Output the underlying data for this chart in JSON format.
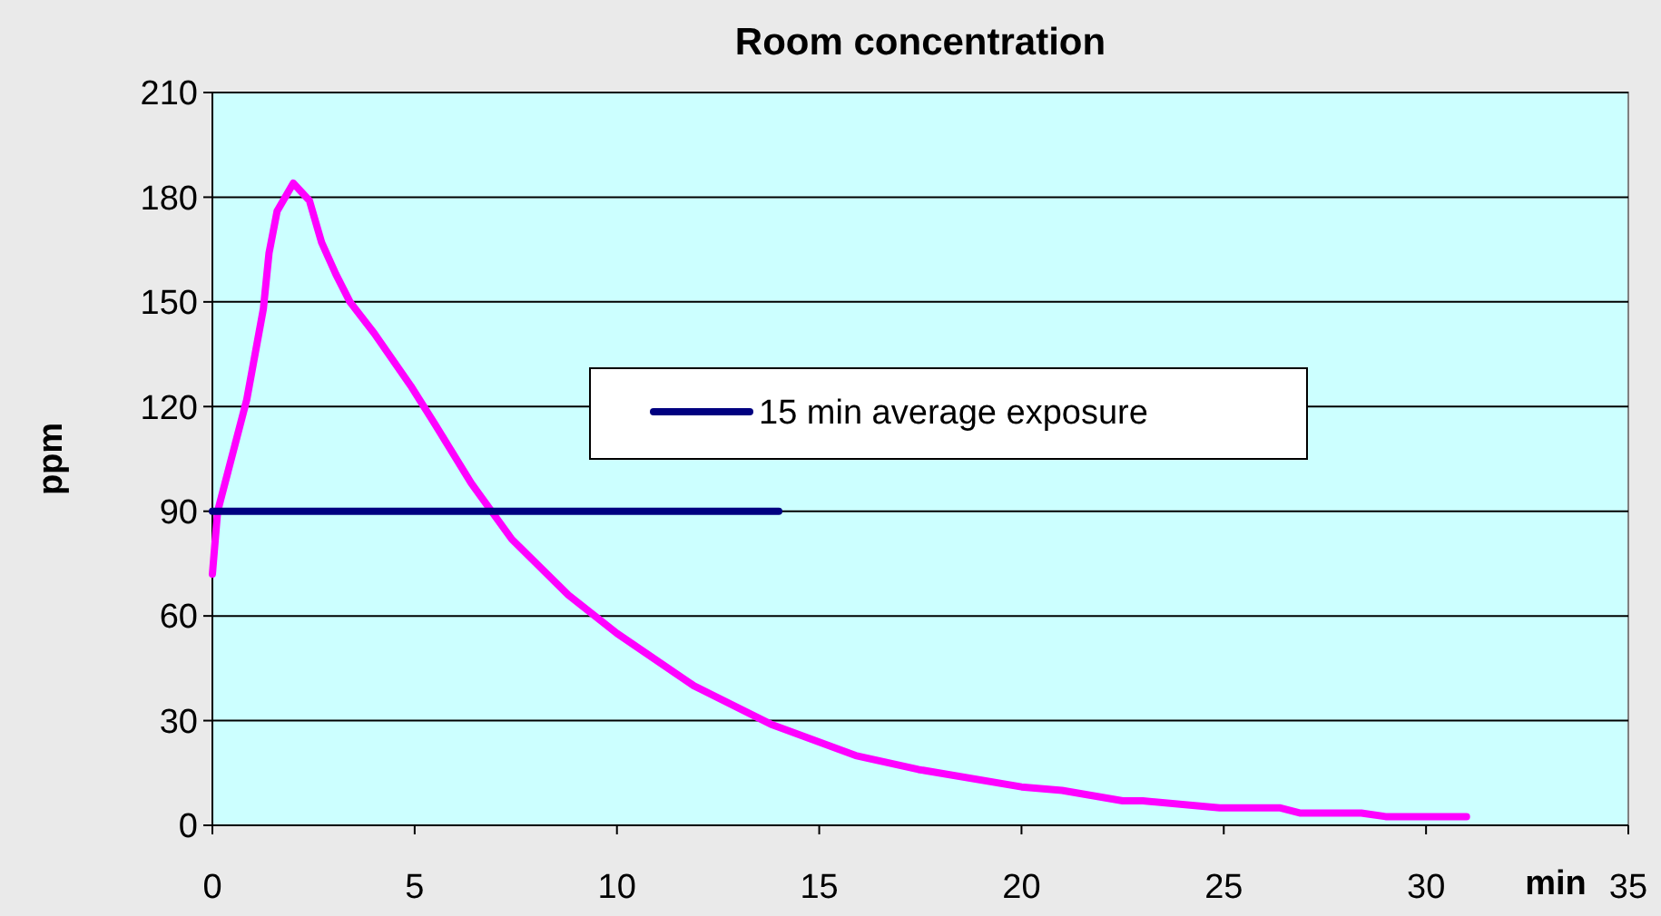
{
  "chart_data": {
    "type": "line",
    "title": "Room concentration",
    "xlabel": "min",
    "ylabel": "ppm",
    "xlim": [
      0,
      35
    ],
    "xticks": [
      0,
      5,
      10,
      15,
      20,
      25,
      30,
      35
    ],
    "ylim": [
      0,
      210
    ],
    "yticks": [
      0,
      30,
      60,
      90,
      120,
      150,
      180,
      210
    ],
    "grid": "y",
    "legend": "right",
    "series": [
      {
        "color": "#ff00ff",
        "x": [
          0,
          0.13,
          0.85,
          1.26,
          1.4,
          1.6,
          2.0,
          2.4,
          2.7,
          3.05,
          3.4,
          4.0,
          4.9,
          5.5,
          6.4,
          7.4,
          8.8,
          10,
          11.9,
          13.8,
          15.9,
          17.45,
          20,
          21,
          22.5,
          23,
          24.9,
          26.4,
          26.9,
          28.4,
          29,
          31
        ],
        "values": [
          72,
          90,
          122,
          148,
          164,
          176,
          184,
          179,
          167,
          158,
          150,
          141,
          126,
          115,
          98,
          82,
          66,
          55,
          40,
          29,
          20,
          16,
          11,
          10,
          7,
          7,
          5,
          5,
          3.5,
          3.5,
          2.5,
          2.5
        ]
      },
      {
        "name": "15 min average exposure",
        "color": "#000080",
        "x": [
          0,
          14
        ],
        "values": [
          90,
          90
        ]
      }
    ]
  }
}
